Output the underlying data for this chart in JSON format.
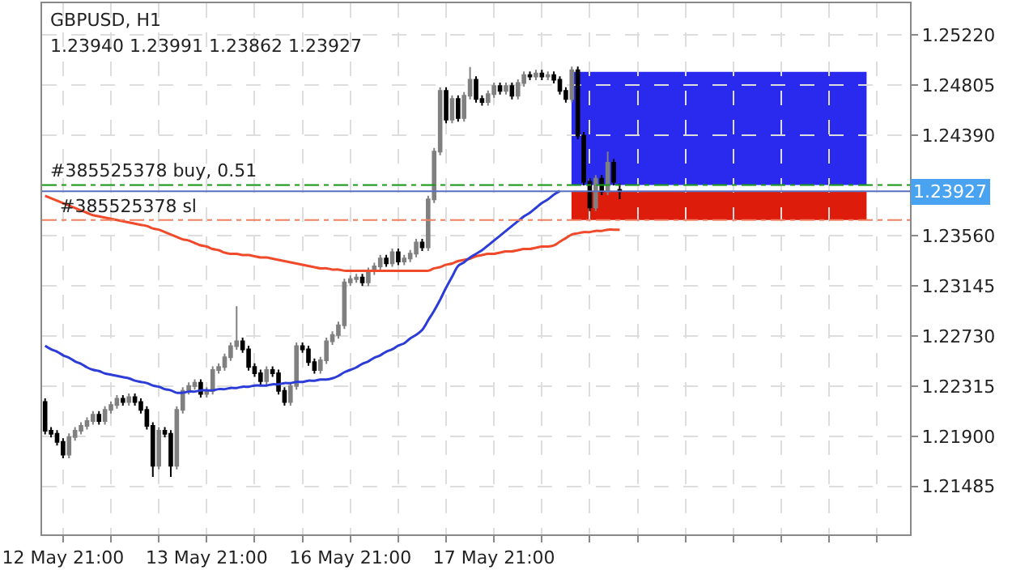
{
  "chart_data": {
    "type": "candlestick",
    "title": "GBPUSD, H1",
    "subtitle": "1.23940 1.23991 1.23862 1.23927",
    "categories": [
      null,
      null,
      null,
      "12 May 21:00",
      null,
      null,
      null,
      null,
      null,
      null,
      null,
      null,
      null,
      null,
      null,
      null,
      null,
      null,
      null,
      null,
      null,
      null,
      null,
      null,
      null,
      null,
      null,
      "13 May 21:00",
      null,
      null,
      null,
      null,
      null,
      null,
      null,
      null,
      null,
      null,
      null,
      null,
      null,
      null,
      null,
      null,
      null,
      null,
      null,
      null,
      null,
      null,
      null,
      "16 May 21:00",
      null,
      null,
      null,
      null,
      null,
      null,
      null,
      null,
      null,
      null,
      null,
      null,
      null,
      null,
      null,
      null,
      null,
      null,
      null,
      null,
      null,
      null,
      null,
      "17 May 21:00",
      null,
      null,
      null,
      null,
      null,
      null,
      null,
      null,
      null,
      null,
      null,
      null,
      null,
      null,
      null,
      null,
      null,
      null,
      null,
      null,
      null
    ],
    "ohlc": [
      [
        1.22184,
        1.22214,
        1.21916,
        1.21946
      ],
      [
        1.21946,
        1.21976,
        1.2189,
        1.2192
      ],
      [
        1.2192,
        1.2195,
        1.21824,
        1.21854
      ],
      [
        1.21854,
        1.21884,
        1.21718,
        1.21748
      ],
      [
        1.21748,
        1.21924,
        1.21718,
        1.21894
      ],
      [
        1.21894,
        1.21976,
        1.21864,
        1.21946
      ],
      [
        1.21946,
        1.22016,
        1.21916,
        1.21986
      ],
      [
        1.21986,
        1.22056,
        1.21956,
        1.22026
      ],
      [
        1.22026,
        1.22108,
        1.21996,
        1.22078
      ],
      [
        1.22078,
        1.22108,
        1.21996,
        1.22026
      ],
      [
        1.22026,
        1.22148,
        1.21996,
        1.22118
      ],
      [
        1.22118,
        1.22188,
        1.22088,
        1.22158
      ],
      [
        1.22158,
        1.2224,
        1.22128,
        1.2221
      ],
      [
        1.2221,
        1.2224,
        1.22154,
        1.22184
      ],
      [
        1.22184,
        1.22254,
        1.22154,
        1.22224
      ],
      [
        1.22224,
        1.22254,
        1.22154,
        1.22184
      ],
      [
        1.22184,
        1.22214,
        1.22088,
        1.22118
      ],
      [
        1.22118,
        1.22148,
        1.21956,
        1.21986
      ],
      [
        1.21986,
        1.22016,
        1.21564,
        1.21656
      ],
      [
        1.21656,
        1.21976,
        1.21626,
        1.21946
      ],
      [
        1.21946,
        1.21976,
        1.2189,
        1.2192
      ],
      [
        1.2192,
        1.2195,
        1.21564,
        1.21656
      ],
      [
        1.21656,
        1.22148,
        1.21626,
        1.22118
      ],
      [
        1.22118,
        1.22306,
        1.22088,
        1.22276
      ],
      [
        1.22276,
        1.22346,
        1.22246,
        1.22316
      ],
      [
        1.22316,
        1.22372,
        1.22286,
        1.22342
      ],
      [
        1.22342,
        1.22372,
        1.2222,
        1.2225
      ],
      [
        1.2225,
        1.22306,
        1.2222,
        1.22276
      ],
      [
        1.22276,
        1.22478,
        1.22246,
        1.22448
      ],
      [
        1.22448,
        1.22504,
        1.22418,
        1.22474
      ],
      [
        1.22474,
        1.22584,
        1.22444,
        1.22554
      ],
      [
        1.22554,
        1.22676,
        1.22524,
        1.22646
      ],
      [
        1.22646,
        1.22976,
        1.22616,
        1.22686
      ],
      [
        1.22686,
        1.22716,
        1.2259,
        1.2262
      ],
      [
        1.2262,
        1.2265,
        1.22444,
        1.22474
      ],
      [
        1.22474,
        1.22504,
        1.22392,
        1.22422
      ],
      [
        1.22422,
        1.22452,
        1.22326,
        1.22356
      ],
      [
        1.22356,
        1.22478,
        1.22326,
        1.22448
      ],
      [
        1.22448,
        1.22478,
        1.22392,
        1.22422
      ],
      [
        1.22422,
        1.22452,
        1.22246,
        1.22276
      ],
      [
        1.22276,
        1.22306,
        1.22154,
        1.22184
      ],
      [
        1.22184,
        1.22346,
        1.22154,
        1.22316
      ],
      [
        1.22316,
        1.22676,
        1.22286,
        1.22646
      ],
      [
        1.22646,
        1.22676,
        1.2259,
        1.2262
      ],
      [
        1.2262,
        1.2265,
        1.22484,
        1.22514
      ],
      [
        1.22514,
        1.22544,
        1.22418,
        1.22448
      ],
      [
        1.22448,
        1.22558,
        1.22418,
        1.22528
      ],
      [
        1.22528,
        1.22716,
        1.22498,
        1.22686
      ],
      [
        1.22686,
        1.22768,
        1.22656,
        1.22738
      ],
      [
        1.22738,
        1.22848,
        1.22708,
        1.22818
      ],
      [
        1.22818,
        1.23204,
        1.22788,
        1.23174
      ],
      [
        1.23174,
        1.2323,
        1.23144,
        1.232
      ],
      [
        1.232,
        1.23244,
        1.2317,
        1.23214
      ],
      [
        1.23214,
        1.23244,
        1.23144,
        1.23174
      ],
      [
        1.23174,
        1.23296,
        1.23144,
        1.23266
      ],
      [
        1.23266,
        1.23336,
        1.23236,
        1.23306
      ],
      [
        1.23306,
        1.23402,
        1.23276,
        1.23372
      ],
      [
        1.23372,
        1.23402,
        1.23302,
        1.23332
      ],
      [
        1.23332,
        1.23454,
        1.23302,
        1.23424
      ],
      [
        1.23424,
        1.23454,
        1.23316,
        1.23346
      ],
      [
        1.23346,
        1.23402,
        1.23316,
        1.23372
      ],
      [
        1.23372,
        1.23442,
        1.23342,
        1.23412
      ],
      [
        1.23412,
        1.23534,
        1.23382,
        1.23504
      ],
      [
        1.23504,
        1.23534,
        1.23434,
        1.23464
      ],
      [
        1.23464,
        1.2389,
        1.23434,
        1.2386
      ],
      [
        1.2386,
        1.24286,
        1.2383,
        1.24256
      ],
      [
        1.24256,
        1.24788,
        1.24226,
        1.24758
      ],
      [
        1.24758,
        1.24788,
        1.2449,
        1.2452
      ],
      [
        1.2452,
        1.24722,
        1.2449,
        1.24692
      ],
      [
        1.24692,
        1.24722,
        1.24504,
        1.24534
      ],
      [
        1.24534,
        1.24748,
        1.24504,
        1.24718
      ],
      [
        1.24718,
        1.24956,
        1.24688,
        1.2485
      ],
      [
        1.2485,
        1.2488,
        1.24662,
        1.24692
      ],
      [
        1.24692,
        1.24722,
        1.24636,
        1.24666
      ],
      [
        1.24666,
        1.24762,
        1.24636,
        1.24732
      ],
      [
        1.24732,
        1.24828,
        1.24702,
        1.24798
      ],
      [
        1.24798,
        1.24828,
        1.24728,
        1.24758
      ],
      [
        1.24758,
        1.24828,
        1.24728,
        1.24798
      ],
      [
        1.24798,
        1.24828,
        1.24688,
        1.24718
      ],
      [
        1.24718,
        1.24854,
        1.24688,
        1.24824
      ],
      [
        1.24824,
        1.2492,
        1.24794,
        1.2489
      ],
      [
        1.2489,
        1.2492,
        1.24847,
        1.24877
      ],
      [
        1.24877,
        1.24933,
        1.24847,
        1.24903
      ],
      [
        1.24903,
        1.24933,
        1.24847,
        1.24877
      ],
      [
        1.24877,
        1.2492,
        1.24847,
        1.2489
      ],
      [
        1.2489,
        1.2492,
        1.2482,
        1.2485
      ],
      [
        1.2485,
        1.2488,
        1.24728,
        1.24758
      ],
      [
        1.24758,
        1.24788,
        1.24662,
        1.24692
      ],
      [
        1.24692,
        1.2496,
        1.24662,
        1.2493
      ],
      [
        1.2493,
        1.2496,
        1.24358,
        1.24388
      ],
      [
        1.24388,
        1.24418,
        1.23976,
        1.24006
      ],
      [
        1.24006,
        1.24036,
        1.23764,
        1.23794
      ],
      [
        1.23794,
        1.24062,
        1.23764,
        1.24032
      ],
      [
        1.24032,
        1.24062,
        1.23896,
        1.23926
      ],
      [
        1.23926,
        1.24256,
        1.23896,
        1.24164
      ],
      [
        1.24164,
        1.24194,
        1.23976,
        1.24006
      ],
      [
        1.2394,
        1.23991,
        1.23862,
        1.23927
      ]
    ],
    "colors": [
      "#000000",
      "#000000",
      "#000000",
      "#000000",
      "#808080",
      "#808080",
      "#808080",
      "#808080",
      "#808080",
      "#000000",
      "#808080",
      "#808080",
      "#808080",
      "#000000",
      "#808080",
      "#000000",
      "#000000",
      "#000000",
      "#000000",
      "#808080",
      "#000000",
      "#000000",
      "#808080",
      "#808080",
      "#808080",
      "#808080",
      "#000000",
      "#808080",
      "#808080",
      "#808080",
      "#808080",
      "#808080",
      "#808080",
      "#000000",
      "#000000",
      "#000000",
      "#000000",
      "#808080",
      "#000000",
      "#000000",
      "#000000",
      "#808080",
      "#808080",
      "#000000",
      "#000000",
      "#000000",
      "#808080",
      "#808080",
      "#808080",
      "#808080",
      "#808080",
      "#808080",
      "#808080",
      "#000000",
      "#808080",
      "#808080",
      "#808080",
      "#000000",
      "#808080",
      "#000000",
      "#808080",
      "#808080",
      "#808080",
      "#000000",
      "#808080",
      "#808080",
      "#808080",
      "#000000",
      "#808080",
      "#000000",
      "#808080",
      "#808080",
      "#000000",
      "#000000",
      "#808080",
      "#808080",
      "#000000",
      "#808080",
      "#000000",
      "#808080",
      "#808080",
      "#000000",
      "#808080",
      "#000000",
      "#808080",
      "#000000",
      "#000000",
      "#000000",
      "#808080",
      "#000000",
      "#000000",
      "#000000",
      "#808080",
      "#000000",
      "#808080",
      "#000000",
      "#000000"
    ],
    "series": [
      {
        "type": "line",
        "color": "#f04a2a",
        "values": [
          1.2389,
          1.2387,
          1.2385,
          1.2383,
          1.2381,
          1.2379,
          1.2377,
          1.2375,
          1.2373,
          1.2372,
          1.2371,
          1.237,
          1.2369,
          1.2368,
          1.2367,
          1.2366,
          1.2365,
          1.2364,
          1.2362,
          1.2361,
          1.2359,
          1.2357,
          1.2355,
          1.2353,
          1.2352,
          1.235,
          1.2348,
          1.2347,
          1.2345,
          1.2344,
          1.2342,
          1.2341,
          1.2341,
          1.234,
          1.234,
          1.2339,
          1.2338,
          1.2338,
          1.2337,
          1.2336,
          1.2335,
          1.2334,
          1.2333,
          1.2332,
          1.2331,
          1.233,
          1.2329,
          1.2329,
          1.2328,
          1.2328,
          1.2327,
          1.2327,
          1.2327,
          1.2327,
          1.2327,
          1.2327,
          1.2327,
          1.2327,
          1.2327,
          1.2327,
          1.2327,
          1.2327,
          1.2327,
          1.2327,
          1.2327,
          1.2329,
          1.233,
          1.2332,
          1.2333,
          1.2335,
          1.2336,
          1.2337,
          1.2339,
          1.234,
          1.2341,
          1.2341,
          1.2342,
          1.2343,
          1.2343,
          1.2344,
          1.2345,
          1.2345,
          1.2346,
          1.2347,
          1.2347,
          1.2348,
          1.2351,
          1.2354,
          1.2357,
          1.2358,
          1.2359,
          1.2359,
          1.236,
          1.236,
          1.2361,
          1.2361,
          1.2361
        ]
      },
      {
        "type": "line",
        "color": "#2b3cd8",
        "values": [
          1.2265,
          1.2262,
          1.226,
          1.2257,
          1.2255,
          1.2252,
          1.225,
          1.2247,
          1.2245,
          1.2244,
          1.2242,
          1.2241,
          1.224,
          1.2239,
          1.2238,
          1.2236,
          1.2235,
          1.2234,
          1.2232,
          1.2231,
          1.2229,
          1.2228,
          1.2226,
          1.2226,
          1.2227,
          1.2227,
          1.2228,
          1.2228,
          1.2228,
          1.2229,
          1.2229,
          1.223,
          1.223,
          1.2231,
          1.2231,
          1.2232,
          1.2232,
          1.2232,
          1.2233,
          1.2233,
          1.2234,
          1.2234,
          1.2235,
          1.2235,
          1.2236,
          1.2236,
          1.2237,
          1.2237,
          1.2238,
          1.224,
          1.2243,
          1.2245,
          1.2247,
          1.225,
          1.2252,
          1.2255,
          1.2257,
          1.226,
          1.2262,
          1.2265,
          1.2267,
          1.2271,
          1.2274,
          1.2278,
          1.2286,
          1.2294,
          1.2303,
          1.2313,
          1.2322,
          1.2331,
          1.2334,
          1.2338,
          1.2341,
          1.2344,
          1.2348,
          1.2352,
          1.2356,
          1.236,
          1.2364,
          1.2368,
          1.2372,
          1.2375,
          1.2379,
          1.2383,
          1.2386,
          1.239,
          1.2393,
          null,
          null,
          null,
          null,
          null,
          null,
          null,
          null,
          null,
          null
        ]
      }
    ],
    "ylim": [
      1.21088,
      1.25484
    ],
    "yticks": [
      {
        "value": 1.21485,
        "label": "1.21485"
      },
      {
        "value": 1.219,
        "label": "1.21900"
      },
      {
        "value": 1.22315,
        "label": "1.22315"
      },
      {
        "value": 1.2273,
        "label": "1.22730"
      },
      {
        "value": 1.23145,
        "label": "1.23145"
      },
      {
        "value": 1.2356,
        "label": "1.23560"
      },
      {
        "value": 1.23975,
        "label": null
      },
      {
        "value": 1.2439,
        "label": "1.24390"
      },
      {
        "value": 1.24805,
        "label": "1.24805"
      },
      {
        "value": 1.2522,
        "label": "1.25220"
      }
    ],
    "grid": true,
    "ref_lines": [
      {
        "axis": "y",
        "value": 1.23979,
        "label": "#385525378 buy, 0.51",
        "color": "#1a9a1a",
        "line_style": "dashdot"
      },
      {
        "axis": "y",
        "value": 1.23927,
        "label": "1.23927",
        "color": "#5a6fc0",
        "line_style": "solid"
      },
      {
        "axis": "y",
        "value": 1.23689,
        "label": "#385525378 sl",
        "color": "#f08060",
        "line_style": "dashdot"
      }
    ],
    "bands": [
      {
        "axis": "y",
        "from": 1.23979,
        "to": 1.24916,
        "color": "#2a2aee"
      },
      {
        "axis": "y",
        "from": 1.23689,
        "to": 1.23926,
        "color": "#dd1c0c"
      }
    ]
  }
}
